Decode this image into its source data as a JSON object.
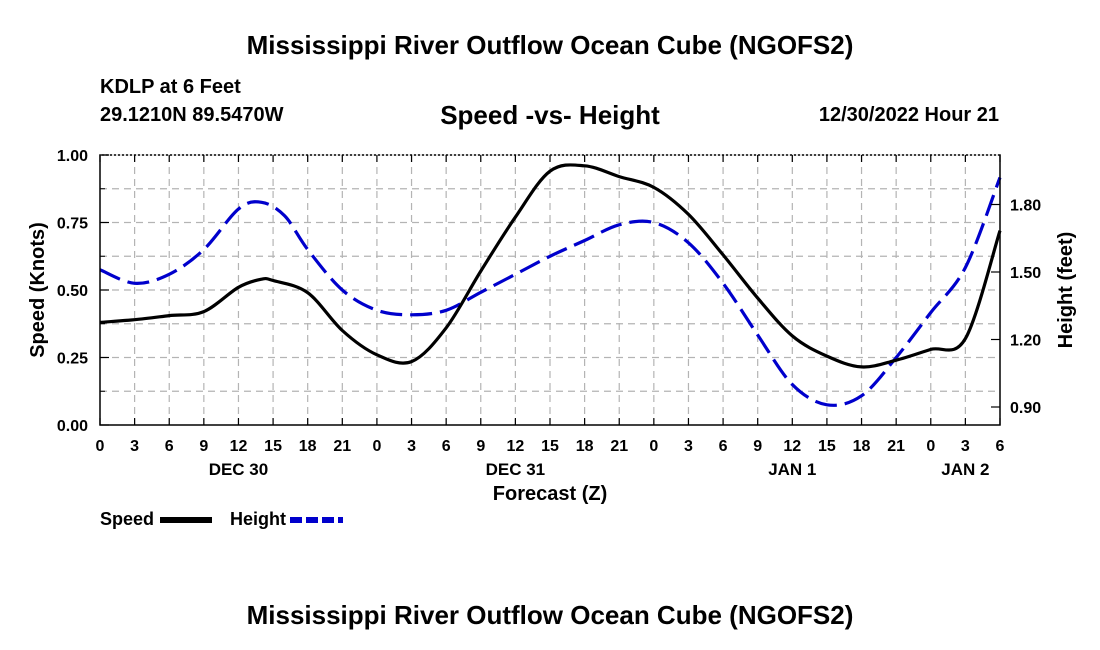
{
  "header": {
    "title": "Mississippi River Outflow Ocean Cube (NGOFS2)",
    "station": "KDLP at 6 Feet",
    "coords": "29.1210N  89.5470W",
    "subtitle": "Speed -vs- Height",
    "datetime": "12/30/2022 Hour 21"
  },
  "footer": {
    "title": "Mississippi River Outflow Ocean Cube (NGOFS2)"
  },
  "chart_data": {
    "type": "line",
    "xlabel": "Forecast (Z)",
    "ylabel": "Speed (Knots)",
    "y2label": "Height (feet)",
    "xlim": [
      0,
      78
    ],
    "ylim": [
      0,
      1
    ],
    "y2lim": [
      0.82,
      2.02
    ],
    "grid": true,
    "legend_position": "bottom-left",
    "x_tick_labels": [
      "0",
      "3",
      "6",
      "9",
      "12",
      "15",
      "18",
      "21",
      "0",
      "3",
      "6",
      "9",
      "12",
      "15",
      "18",
      "21",
      "0",
      "3",
      "6",
      "9",
      "12",
      "15",
      "18",
      "21",
      "0",
      "3",
      "6"
    ],
    "y_ticks": [
      0,
      0.25,
      0.5,
      0.75,
      1.0
    ],
    "y_tick_labels": [
      "0.00",
      "0.25",
      "0.50",
      "0.75",
      "1.00"
    ],
    "y2_ticks": [
      0.9,
      1.2,
      1.5,
      1.8
    ],
    "y2_tick_labels": [
      "0.90",
      "1.20",
      "1.50",
      "1.80"
    ],
    "date_labels": [
      {
        "label": "DEC 30",
        "x": 12
      },
      {
        "label": "DEC 31",
        "x": 36
      },
      {
        "label": "JAN 1",
        "x": 60
      },
      {
        "label": "JAN 2",
        "x": 75
      }
    ],
    "series": [
      {
        "name": "Speed",
        "axis": "left",
        "color": "#000000",
        "dash": "solid",
        "x": [
          0,
          3,
          6,
          9,
          12,
          14,
          15,
          18,
          21,
          24,
          27,
          30,
          33,
          36,
          39,
          42,
          45,
          48,
          51,
          54,
          57,
          60,
          63,
          66,
          69,
          72,
          75,
          78
        ],
        "values": [
          0.38,
          0.39,
          0.405,
          0.42,
          0.51,
          0.54,
          0.535,
          0.49,
          0.35,
          0.26,
          0.235,
          0.36,
          0.57,
          0.77,
          0.94,
          0.96,
          0.92,
          0.88,
          0.78,
          0.63,
          0.47,
          0.33,
          0.255,
          0.215,
          0.24,
          0.28,
          0.32,
          0.72
        ]
      },
      {
        "name": "Height",
        "axis": "right",
        "color": "#0000cc",
        "dash": "dashed",
        "x": [
          0,
          3,
          6,
          9,
          12,
          14,
          16,
          18,
          21,
          24,
          27,
          30,
          33,
          36,
          39,
          42,
          45,
          48,
          51,
          54,
          57,
          60,
          63,
          66,
          69,
          72,
          75,
          78
        ],
        "values": [
          1.51,
          1.45,
          1.49,
          1.6,
          1.78,
          1.81,
          1.75,
          1.6,
          1.42,
          1.33,
          1.31,
          1.33,
          1.41,
          1.49,
          1.57,
          1.64,
          1.71,
          1.72,
          1.63,
          1.45,
          1.22,
          1.0,
          0.91,
          0.95,
          1.12,
          1.32,
          1.52,
          1.92
        ]
      }
    ]
  }
}
